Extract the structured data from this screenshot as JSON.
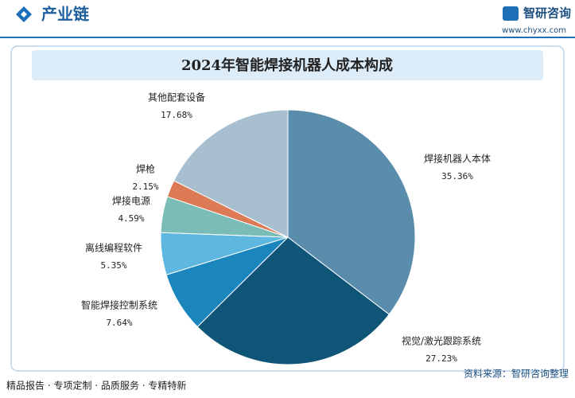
{
  "header": {
    "title": "产业链",
    "brand": "智研咨询",
    "url": "www.chyxx.com"
  },
  "chart_data": {
    "type": "pie",
    "title": "2024年智能焊接机器人成本构成",
    "categories": [
      "焊接机器人本体",
      "视觉/激光跟踪系统",
      "智能焊接控制系统",
      "离线编程软件",
      "焊接电源",
      "焊枪",
      "其他配套设备"
    ],
    "values": [
      35.36,
      27.23,
      7.64,
      5.35,
      4.59,
      2.15,
      17.68
    ],
    "value_labels": [
      "35.36%",
      "27.23%",
      "7.64%",
      "5.35%",
      "4.59%",
      "2.15%",
      "17.68%"
    ],
    "colors": [
      "#5a8cac",
      "#0e5577",
      "#1a86bd",
      "#5db7df",
      "#79bdb6",
      "#dc7a55",
      "#a8bfd0"
    ]
  },
  "footer": {
    "slogan": "精品报告 · 专项定制 · 品质服务 · 专精特新",
    "source": "资料来源：智研咨询整理"
  }
}
